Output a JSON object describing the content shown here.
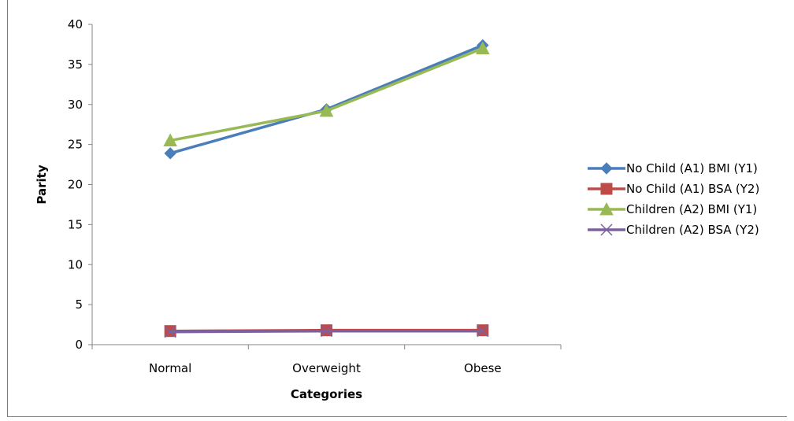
{
  "chart_data": {
    "type": "line",
    "categories": [
      "Normal",
      "Overweight",
      "Obese"
    ],
    "xlabel": "Categories",
    "ylabel": "Parity",
    "ylim": [
      0,
      40
    ],
    "yticks": [
      0,
      5,
      10,
      15,
      20,
      25,
      30,
      35,
      40
    ],
    "grid": false,
    "legend_position": "right",
    "series": [
      {
        "name": "No Child (A1) BMI (Y1)",
        "values": [
          23.9,
          29.4,
          37.4
        ],
        "color": "#4a7ebb",
        "marker": "diamond"
      },
      {
        "name": "No Child (A1) BSA (Y2)",
        "values": [
          1.7,
          1.8,
          1.8
        ],
        "color": "#be4b48",
        "marker": "square"
      },
      {
        "name": "Children (A2) BMI (Y1)",
        "values": [
          25.5,
          29.2,
          37.0
        ],
        "color": "#98b954",
        "marker": "triangle"
      },
      {
        "name": "Children (A2) BSA (Y2)",
        "values": [
          1.6,
          1.7,
          1.7
        ],
        "color": "#7d60a0",
        "marker": "x"
      }
    ]
  }
}
